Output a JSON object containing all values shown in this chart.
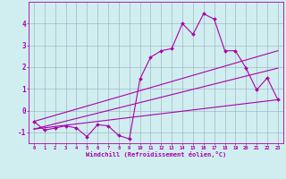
{
  "title": "",
  "xlabel": "Windchill (Refroidissement éolien,°C)",
  "background_color": "#d0eef0",
  "line_color": "#aa00aa",
  "grid_color": "#99aabb",
  "xlim": [
    -0.5,
    23.5
  ],
  "ylim": [
    -1.5,
    5.0
  ],
  "yticks": [
    -1,
    0,
    1,
    2,
    3,
    4
  ],
  "xticks": [
    0,
    1,
    2,
    3,
    4,
    5,
    6,
    7,
    8,
    9,
    10,
    11,
    12,
    13,
    14,
    15,
    16,
    17,
    18,
    19,
    20,
    21,
    22,
    23
  ],
  "curve1_x": [
    0,
    1,
    2,
    3,
    4,
    5,
    6,
    7,
    8,
    9,
    10,
    11,
    12,
    13,
    14,
    15,
    16,
    17,
    18,
    19,
    20,
    21,
    22,
    23
  ],
  "curve1_y": [
    -0.5,
    -0.9,
    -0.8,
    -0.7,
    -0.8,
    -1.2,
    -0.65,
    -0.7,
    -1.15,
    -1.3,
    1.45,
    2.45,
    2.75,
    2.85,
    4.0,
    3.5,
    4.45,
    4.2,
    2.75,
    2.75,
    1.95,
    0.95,
    1.5,
    0.5
  ],
  "line2_x": [
    0,
    23
  ],
  "line2_y": [
    -0.85,
    0.5
  ],
  "line3_x": [
    0,
    23
  ],
  "line3_y": [
    -0.85,
    1.95
  ],
  "line4_x": [
    0,
    23
  ],
  "line4_y": [
    -0.5,
    2.75
  ]
}
